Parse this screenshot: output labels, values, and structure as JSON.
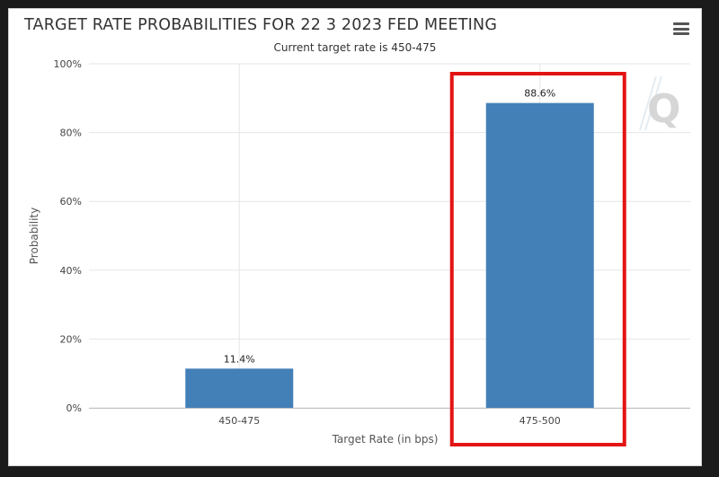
{
  "chart_data": {
    "type": "bar",
    "title": "TARGET RATE PROBABILITIES FOR 22 3 2023 FED MEETING",
    "subtitle": "Current target rate is 450-475",
    "xlabel": "Target Rate (in bps)",
    "ylabel": "Probability",
    "categories": [
      "450-475",
      "475-500"
    ],
    "values": [
      11.4,
      88.6
    ],
    "data_labels": [
      "11.4%",
      "88.6%"
    ],
    "ylim": [
      0,
      100
    ],
    "yticks": [
      0,
      20,
      40,
      60,
      80,
      100
    ],
    "ytick_labels": [
      "0%",
      "20%",
      "40%",
      "60%",
      "80%",
      "100%"
    ],
    "highlighted_category": "475-500",
    "bar_color": "#4480b8",
    "highlight_color": "#e31414",
    "grid": true,
    "legend": "none"
  },
  "watermark": "Q"
}
